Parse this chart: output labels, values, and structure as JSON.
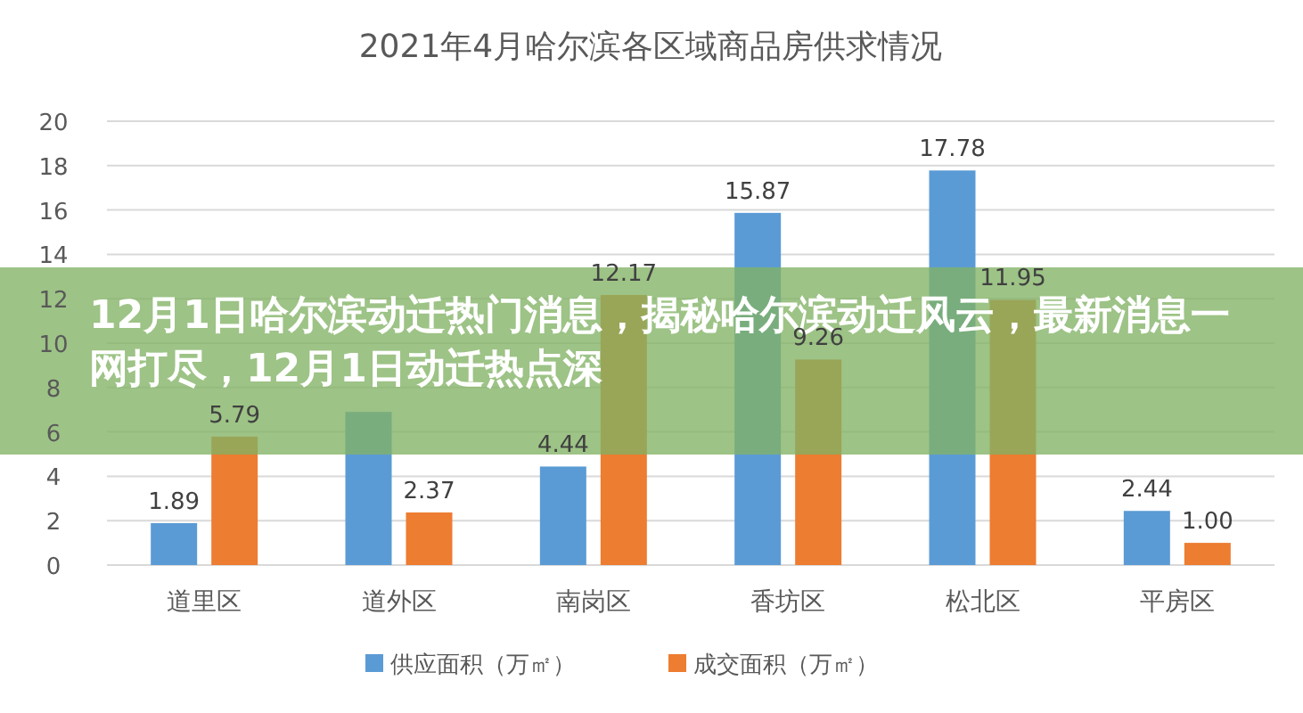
{
  "chart_data": {
    "type": "bar",
    "title": "2021年4月哈尔滨各区域商品房供求情况",
    "categories": [
      "道里区",
      "道外区",
      "南岗区",
      "香坊区",
      "松北区",
      "平房区"
    ],
    "series": [
      {
        "name": "供应面积（万㎡）",
        "color": "#5b9bd5",
        "values": [
          1.89,
          6.9,
          4.44,
          15.87,
          17.78,
          2.44
        ],
        "value_labels": [
          "1.89",
          null,
          "4.44",
          "15.87",
          "17.78",
          "2.44"
        ]
      },
      {
        "name": "成交面积（万㎡）",
        "color": "#ed7d31",
        "values": [
          5.79,
          2.37,
          12.17,
          9.26,
          11.95,
          1.0
        ],
        "value_labels": [
          "5.79",
          "2.37",
          "12.17",
          "9.26",
          "11.95",
          "1.00"
        ]
      }
    ],
    "ylim": [
      0,
      20
    ],
    "yticks": [
      0,
      2,
      4,
      6,
      8,
      10,
      12,
      14,
      16,
      18,
      20
    ],
    "grid": "y",
    "legend": "bottom",
    "annotations": [
      "12月1日哈尔滨动迁热门消息，揭秘哈尔滨动迁风云，最新消息一网打尽，12月1日动迁热点深"
    ]
  }
}
